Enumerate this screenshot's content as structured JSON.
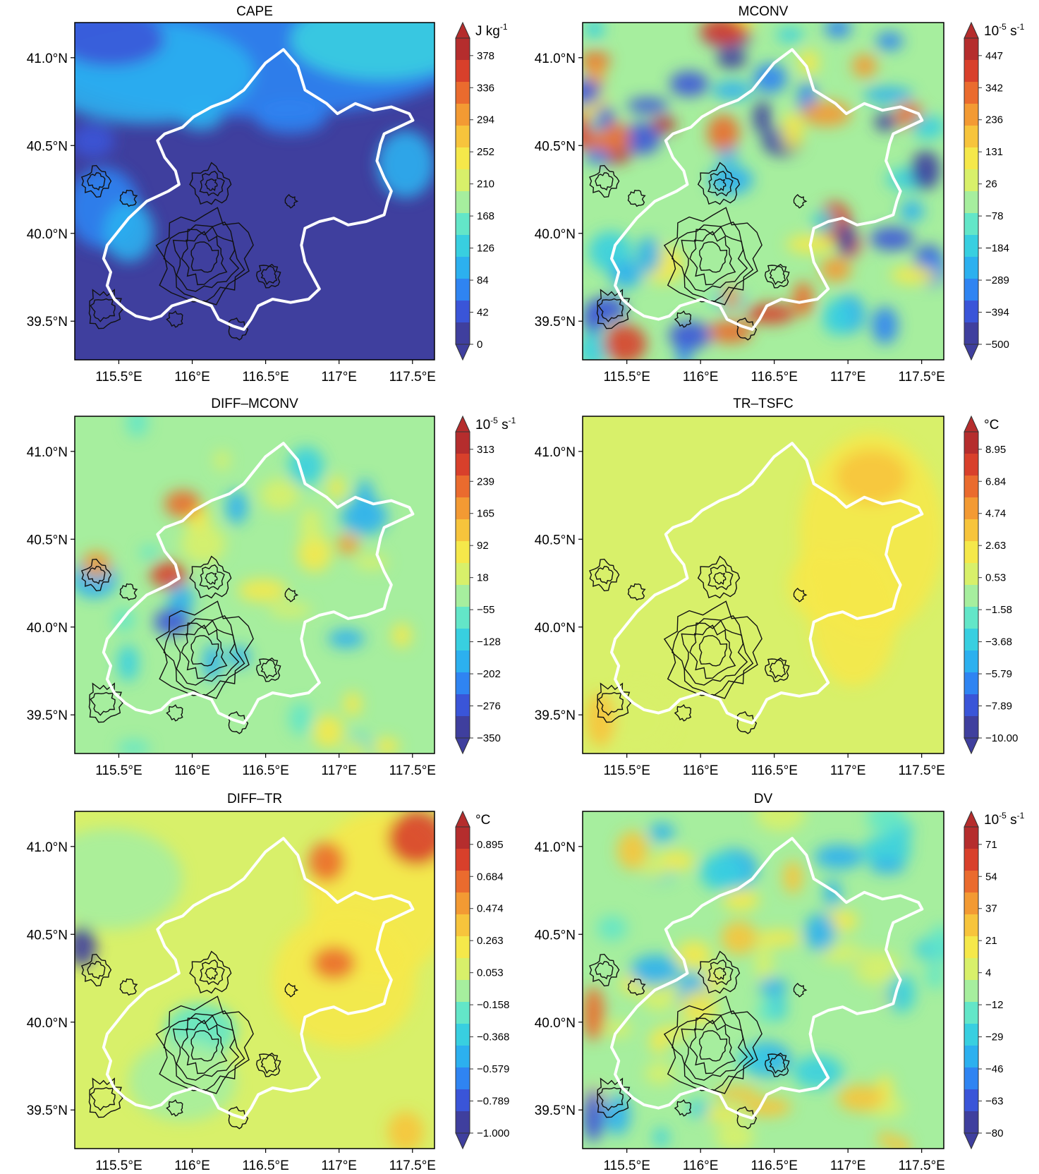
{
  "figure": {
    "x_ticks": [
      "115.5°E",
      "116°E",
      "116.5°E",
      "117°E",
      "117.5°E"
    ],
    "y_ticks": [
      "41.0°N",
      "40.5°N",
      "40.0°N",
      "39.5°N"
    ],
    "x_tick_values": [
      115.5,
      116.0,
      116.5,
      117.0,
      117.5
    ],
    "y_tick_values": [
      41.0,
      40.5,
      40.0,
      39.5
    ],
    "x_range": [
      115.2,
      117.65
    ],
    "y_range": [
      39.28,
      41.2
    ]
  },
  "palette": [
    "#3f3f9e",
    "#3a55d8",
    "#2f84f2",
    "#2cb0ef",
    "#38cfe0",
    "#63e6c8",
    "#a6ee9e",
    "#d8f06a",
    "#f5e84a",
    "#f7c43c",
    "#f39a33",
    "#ea6b2e",
    "#d8402b",
    "#b52d2d"
  ],
  "panels": [
    {
      "title": "CAPE",
      "units": "J kg⁻¹",
      "units_base": "J kg",
      "units_exp": "-1",
      "colorbar_ticks": [
        "378",
        "336",
        "294",
        "252",
        "210",
        "168",
        "126",
        "84",
        "42",
        "0"
      ],
      "field": "cape"
    },
    {
      "title": "MCONV",
      "units": "10⁻⁵ s⁻¹",
      "units_base": "10",
      "units_exp": "-5",
      "units_tail": " s",
      "units_tail_exp": "-1",
      "colorbar_ticks": [
        "447",
        "342",
        "236",
        "131",
        "26",
        "−78",
        "−184",
        "−289",
        "−394",
        "−500"
      ],
      "field": "mconv"
    },
    {
      "title": "DIFF–MCONV",
      "units": "10⁻⁵ s⁻¹",
      "units_base": "10",
      "units_exp": "-5",
      "units_tail": " s",
      "units_tail_exp": "-1",
      "colorbar_ticks": [
        "313",
        "239",
        "165",
        "92",
        "18",
        "−55",
        "−128",
        "−202",
        "−276",
        "−350"
      ],
      "field": "diffmconv"
    },
    {
      "title": "TR–TSFC",
      "units": "°C",
      "units_base": "°C",
      "colorbar_ticks": [
        "8.95",
        "6.84",
        "4.74",
        "2.63",
        "0.53",
        "−1.58",
        "−3.68",
        "−5.79",
        "−7.89",
        "−10.00"
      ],
      "field": "trtsfc"
    },
    {
      "title": "DIFF–TR",
      "units": "°C",
      "units_base": "°C",
      "colorbar_ticks": [
        "0.895",
        "0.684",
        "0.474",
        "0.263",
        "0.053",
        "−0.158",
        "−0.368",
        "−0.579",
        "−0.789",
        "−1.000"
      ],
      "field": "difftr"
    },
    {
      "title": "DV",
      "units": "10⁻⁵ s⁻¹",
      "units_base": "10",
      "units_exp": "-5",
      "units_tail": " s",
      "units_tail_exp": "-1",
      "colorbar_ticks": [
        "71",
        "54",
        "37",
        "21",
        "4",
        "−12",
        "−29",
        "−46",
        "−63",
        "−80"
      ],
      "field": "dv"
    }
  ]
}
